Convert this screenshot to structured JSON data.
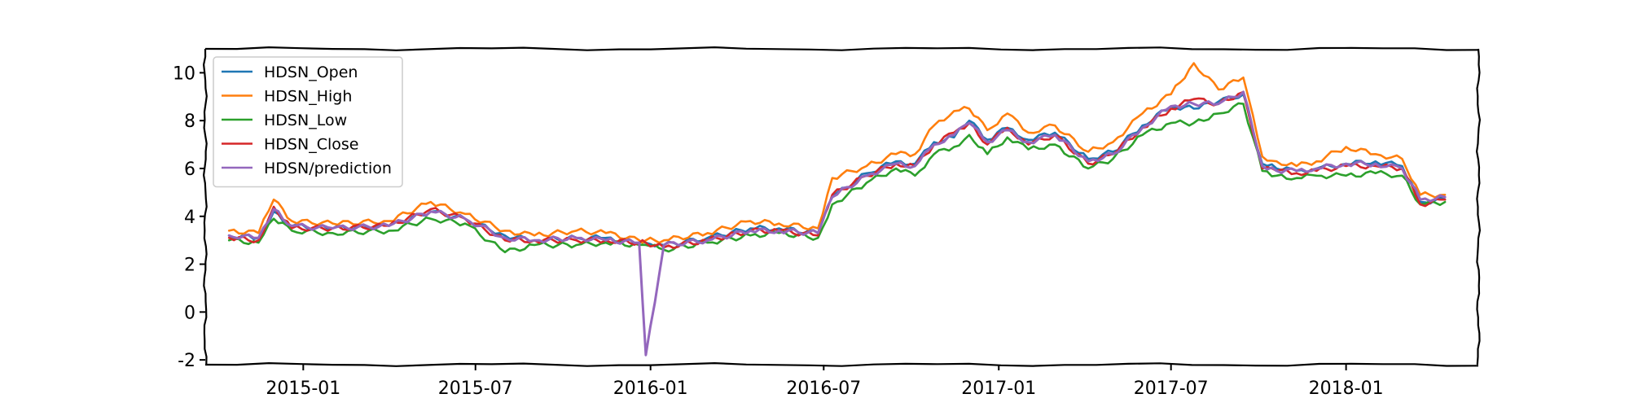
{
  "chart_data": {
    "type": "line",
    "title": "",
    "xlabel": "",
    "ylabel": "",
    "xlim": [
      "2014-09-20",
      "2018-05-20"
    ],
    "ylim": [
      -2.2,
      11
    ],
    "y_ticks": [
      -2,
      0,
      2,
      4,
      6,
      8,
      10
    ],
    "x_ticks": [
      {
        "date": "2015-01-01",
        "label": "2015-01"
      },
      {
        "date": "2015-07-01",
        "label": "2015-07"
      },
      {
        "date": "2016-01-01",
        "label": "2016-01"
      },
      {
        "date": "2016-07-01",
        "label": "2016-07"
      },
      {
        "date": "2017-01-01",
        "label": "2017-01"
      },
      {
        "date": "2017-07-01",
        "label": "2017-07"
      },
      {
        "date": "2018-01-01",
        "label": "2018-01"
      }
    ],
    "grid": false,
    "legend_position": "upper-left",
    "x": [
      "2014-10-15",
      "2014-11-15",
      "2014-12-01",
      "2014-12-20",
      "2015-02-01",
      "2015-04-01",
      "2015-05-15",
      "2015-06-20",
      "2015-08-01",
      "2015-09-01",
      "2015-10-15",
      "2015-11-15",
      "2015-12-20",
      "2015-12-27",
      "2016-01-15",
      "2016-03-01",
      "2016-04-15",
      "2016-05-15",
      "2016-06-25",
      "2016-07-10",
      "2016-08-15",
      "2016-09-15",
      "2016-10-05",
      "2016-10-25",
      "2016-11-15",
      "2016-12-01",
      "2016-12-20",
      "2017-01-10",
      "2017-02-01",
      "2017-03-01",
      "2017-04-05",
      "2017-05-01",
      "2017-06-01",
      "2017-07-01",
      "2017-07-25",
      "2017-08-20",
      "2017-09-15",
      "2017-10-05",
      "2017-10-20",
      "2017-11-10",
      "2017-12-01",
      "2018-01-01",
      "2018-02-01",
      "2018-03-01",
      "2018-03-20",
      "2018-04-15"
    ],
    "series": [
      {
        "name": "HDSN_Open",
        "color": "#1f77b4",
        "values": [
          3.2,
          3.1,
          4.2,
          3.6,
          3.5,
          3.6,
          4.2,
          3.9,
          3.2,
          3.0,
          3.1,
          3.1,
          2.9,
          2.9,
          2.8,
          3.1,
          3.5,
          3.5,
          3.3,
          4.8,
          5.8,
          6.3,
          6.2,
          7.1,
          7.3,
          8.0,
          7.2,
          7.7,
          7.2,
          7.5,
          6.4,
          6.7,
          7.8,
          8.6,
          8.5,
          8.8,
          9.1,
          6.2,
          6.0,
          5.9,
          6.0,
          6.2,
          6.3,
          6.1,
          4.6,
          4.7
        ]
      },
      {
        "name": "HDSN_High",
        "color": "#ff7f0e",
        "values": [
          3.4,
          3.3,
          4.7,
          3.8,
          3.7,
          3.8,
          4.6,
          4.1,
          3.4,
          3.2,
          3.4,
          3.3,
          3.0,
          3.0,
          3.0,
          3.3,
          3.8,
          3.7,
          3.5,
          5.6,
          6.1,
          6.6,
          6.6,
          7.8,
          8.4,
          8.5,
          7.6,
          8.3,
          7.5,
          7.8,
          6.7,
          7.1,
          8.3,
          9.1,
          10.4,
          9.3,
          9.8,
          6.5,
          6.3,
          6.1,
          6.3,
          6.9,
          6.6,
          6.4,
          4.9,
          4.9
        ]
      },
      {
        "name": "HDSN_Low",
        "color": "#2ca02c",
        "values": [
          3.0,
          2.9,
          3.9,
          3.4,
          3.3,
          3.4,
          3.9,
          3.7,
          2.5,
          2.8,
          2.8,
          2.9,
          2.8,
          2.8,
          2.6,
          2.9,
          3.2,
          3.3,
          3.1,
          4.5,
          5.4,
          6.0,
          5.7,
          6.6,
          6.9,
          7.4,
          6.6,
          7.3,
          6.8,
          7.0,
          6.0,
          6.4,
          7.4,
          7.9,
          7.9,
          8.3,
          8.7,
          5.9,
          5.7,
          5.6,
          5.7,
          5.7,
          5.8,
          5.7,
          4.5,
          4.6
        ]
      },
      {
        "name": "HDSN_Close",
        "color": "#d62728",
        "values": [
          3.1,
          3.0,
          4.4,
          3.5,
          3.5,
          3.6,
          4.3,
          3.9,
          3.0,
          3.0,
          3.0,
          3.0,
          2.9,
          2.9,
          2.7,
          3.0,
          3.4,
          3.4,
          3.2,
          4.9,
          5.7,
          6.2,
          6.1,
          7.0,
          7.5,
          7.9,
          7.0,
          7.7,
          7.0,
          7.4,
          6.2,
          6.6,
          7.7,
          8.5,
          8.9,
          8.7,
          9.2,
          6.0,
          5.9,
          5.8,
          5.9,
          6.1,
          6.1,
          6.0,
          4.5,
          4.7
        ]
      },
      {
        "name": "HDSN/prediction",
        "color": "#9467bd",
        "values": [
          3.2,
          3.1,
          4.3,
          3.6,
          3.5,
          3.6,
          4.2,
          3.9,
          3.1,
          3.0,
          3.1,
          3.0,
          2.9,
          -1.8,
          2.8,
          3.0,
          3.4,
          3.4,
          3.3,
          4.8,
          5.7,
          6.2,
          6.1,
          7.0,
          7.4,
          7.9,
          7.1,
          7.6,
          7.1,
          7.4,
          6.3,
          6.6,
          7.7,
          8.6,
          8.7,
          8.7,
          9.2,
          6.1,
          5.9,
          5.9,
          6.0,
          6.2,
          6.2,
          6.0,
          4.7,
          4.8
        ]
      }
    ]
  }
}
